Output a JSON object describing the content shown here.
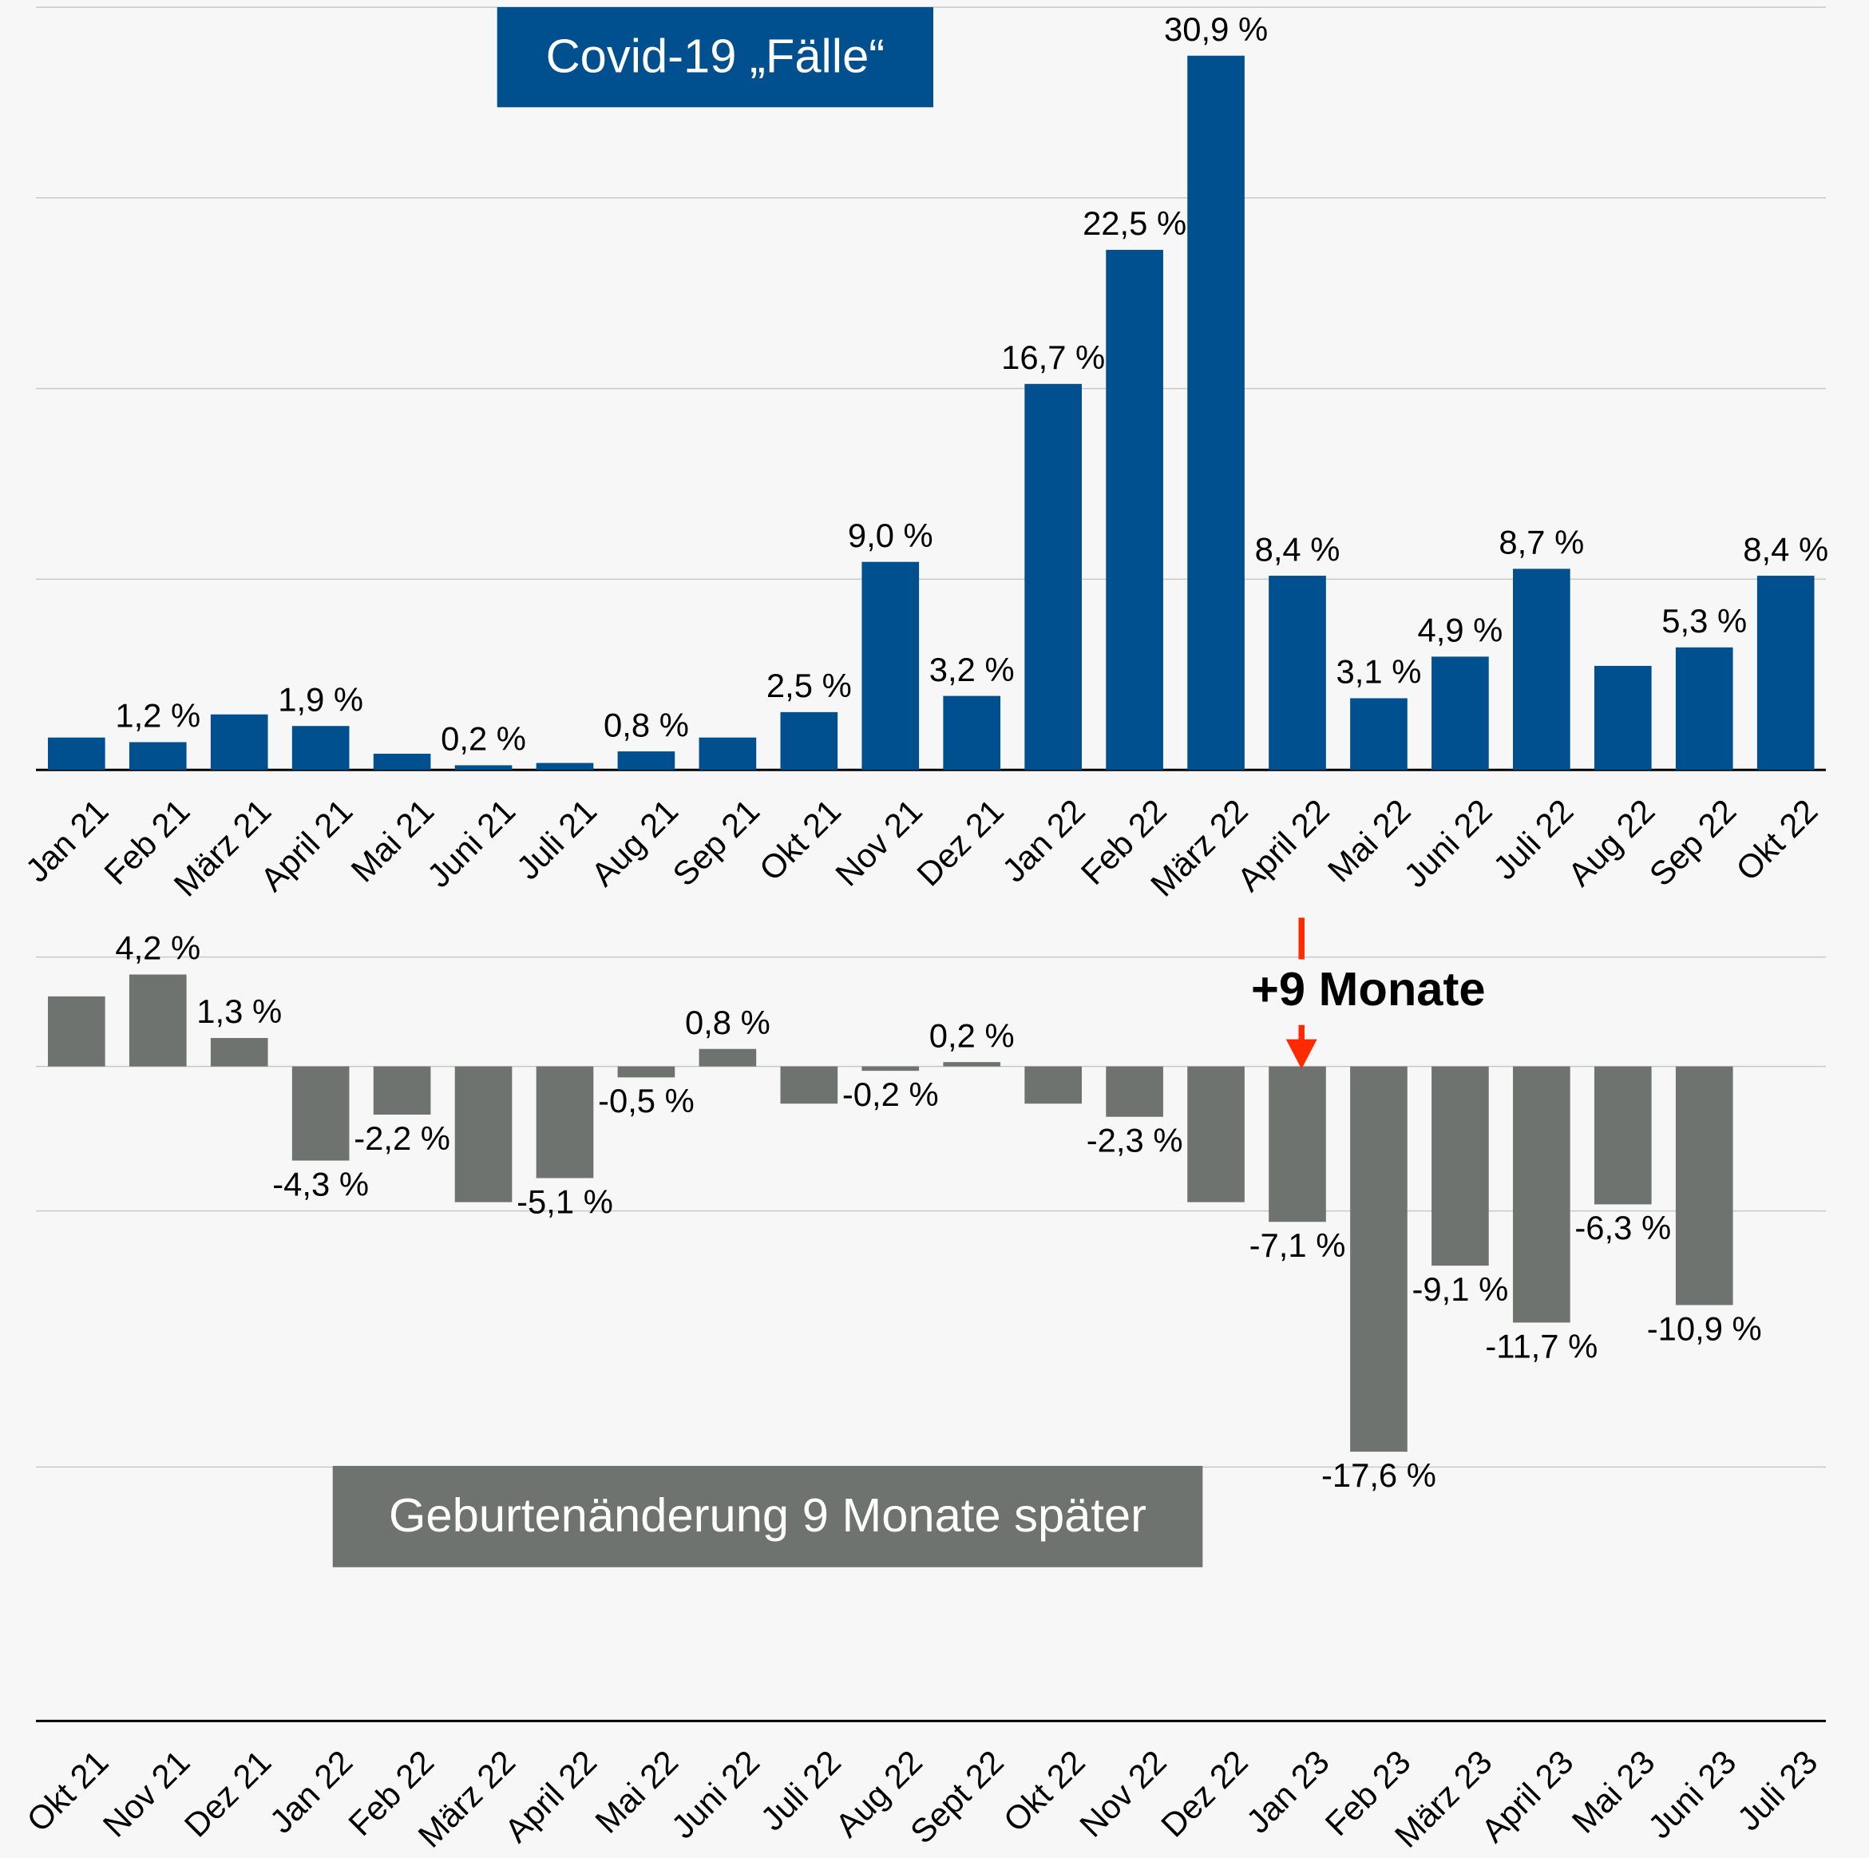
{
  "chart_data": [
    {
      "type": "bar",
      "title": "Covid-19 „Fälle“",
      "color": "#00508f",
      "categories": [
        "Jan 21",
        "Feb 21",
        "März 21",
        "April 21",
        "Mai 21",
        "Juni 21",
        "Juli 21",
        "Aug 21",
        "Sep 21",
        "Okt 21",
        "Nov 21",
        "Dez 21",
        "Jan 22",
        "Feb 22",
        "März 22",
        "April 22",
        "Mai 22",
        "Juni 22",
        "Juli 22",
        "Aug 22",
        "Sep 22",
        "Okt 22"
      ],
      "values": [
        1.4,
        1.2,
        2.4,
        1.9,
        0.7,
        0.2,
        0.3,
        0.8,
        1.4,
        2.5,
        9.0,
        3.2,
        16.7,
        22.5,
        30.9,
        8.4,
        3.1,
        4.9,
        8.7,
        4.5,
        5.3,
        8.4
      ],
      "value_labels": [
        null,
        "1,2 %",
        null,
        "1,9 %",
        null,
        "0,2 %",
        null,
        "0,8 %",
        null,
        "2,5 %",
        "9,0 %",
        "3,2 %",
        "16,7 %",
        "22,5 %",
        "30,9 %",
        "8,4 %",
        "3,1 %",
        "4,9 %",
        "8,7 %",
        null,
        "5,3 %",
        "8,4 %"
      ],
      "ylim": [
        0,
        33
      ],
      "yticks": [
        0,
        8.25,
        16.5,
        24.75,
        33
      ],
      "grid": true
    },
    {
      "type": "bar",
      "title": "Geburtenänderung 9 Monate später",
      "color": "#6e7370",
      "annotation": "+9 Monate",
      "categories": [
        "Okt 21",
        "Nov 21",
        "Dez 21",
        "Jan 22",
        "Feb 22",
        "März 22",
        "April 22",
        "Mai 22",
        "Juni 22",
        "Juli 22",
        "Aug 22",
        "Sept 22",
        "Okt 22",
        "Nov 22",
        "Dez 22",
        "Jan 23",
        "Feb 23",
        "März 23",
        "April 23",
        "Mai 23",
        "Juni 23",
        "Juli 23"
      ],
      "values": [
        3.2,
        4.2,
        1.3,
        -4.3,
        -2.2,
        -6.2,
        -5.1,
        -0.5,
        0.8,
        -1.7,
        -0.2,
        0.2,
        -1.7,
        -2.3,
        -6.2,
        -7.1,
        -17.6,
        -9.1,
        -11.7,
        -6.3,
        -10.9,
        null
      ],
      "value_labels": [
        null,
        "4,2 %",
        "1,3 %",
        "-4,3 %",
        "-2,2 %",
        null,
        "-5,1 %",
        "-0,5 %",
        "0,8 %",
        null,
        "-0,2 %",
        "0,2 %",
        null,
        "-2,3 %",
        null,
        "-7,1 %",
        "-17,6 %",
        "-9,1 %",
        "-11,7 %",
        "-6,3 %",
        "-10,9 %",
        null
      ],
      "ylim": [
        -29.9,
        5
      ],
      "yticks": [
        -29.9,
        -18.3,
        -6.6,
        0,
        5
      ],
      "grid": true
    }
  ]
}
